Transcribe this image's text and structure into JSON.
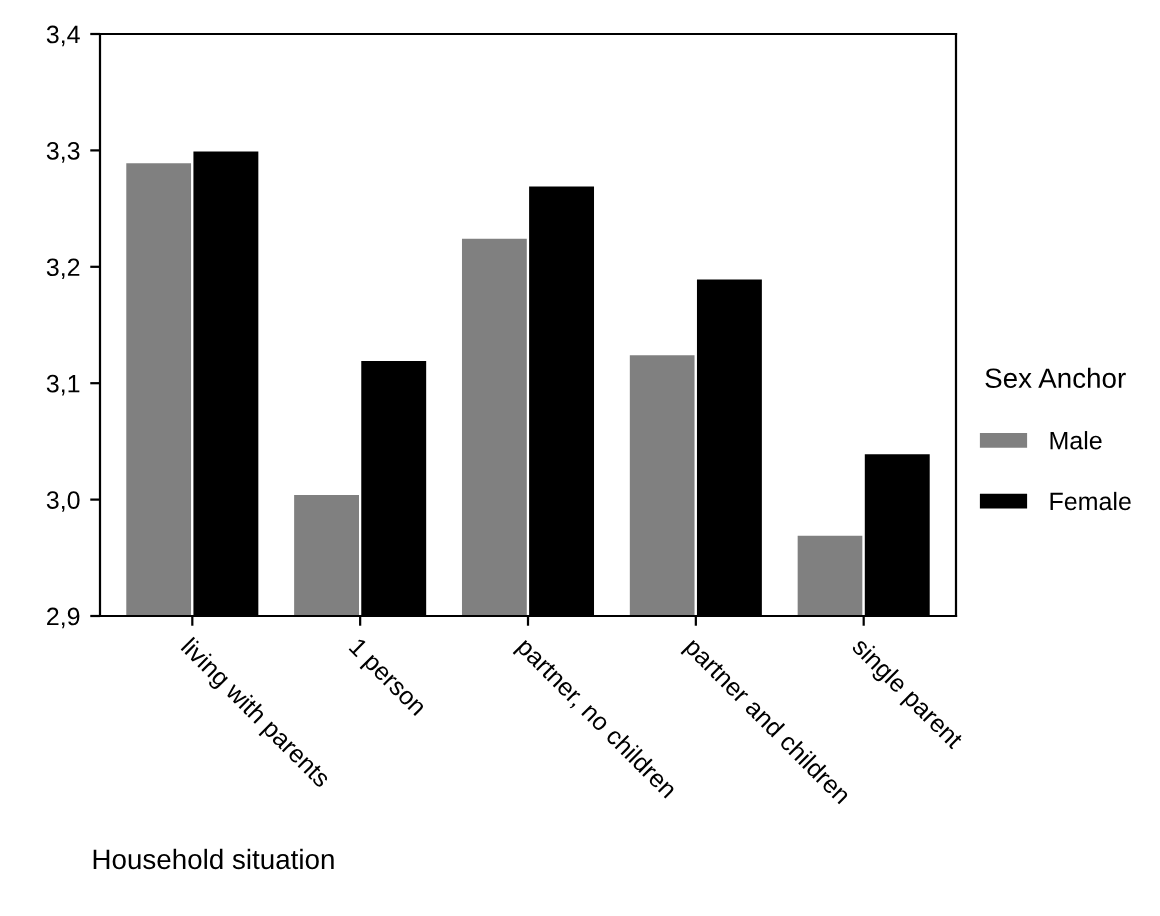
{
  "chart_data": {
    "type": "bar",
    "xlabel": "Household situation",
    "legend_title": "Sex Anchor",
    "categories": [
      "living with parents",
      "1 person",
      "partner, no children",
      "partner and children",
      "single parent"
    ],
    "series": [
      {
        "name": "Male",
        "color": "#808080",
        "values": [
          3.29,
          3.005,
          3.225,
          3.125,
          2.97
        ]
      },
      {
        "name": "Female",
        "color": "#000000",
        "values": [
          3.3,
          3.12,
          3.27,
          3.19,
          3.04
        ]
      }
    ],
    "ylim": [
      2.9,
      3.4
    ],
    "yticks": [
      {
        "value": 2.9,
        "label": "2,9"
      },
      {
        "value": 3.0,
        "label": "3,0"
      },
      {
        "value": 3.1,
        "label": "3,1"
      },
      {
        "value": 3.2,
        "label": "3,2"
      },
      {
        "value": 3.3,
        "label": "3,3"
      },
      {
        "value": 3.4,
        "label": "3,4"
      }
    ],
    "grid": false,
    "legend": "right"
  }
}
